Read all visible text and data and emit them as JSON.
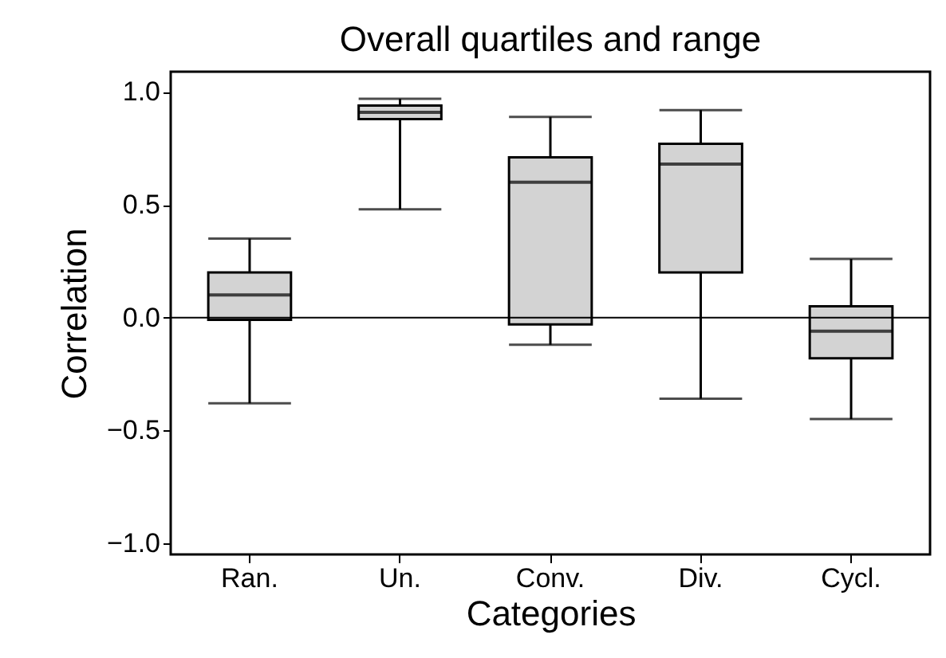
{
  "chart_data": {
    "type": "box",
    "title": "Overall quartiles and range",
    "xlabel": "Categories",
    "ylabel": "Correlation",
    "categories": [
      "Ran.",
      "Un.",
      "Conv.",
      "Div.",
      "Cycl."
    ],
    "series": [
      {
        "color": "#d3d3d3",
        "boxes": [
          {
            "low": -0.38,
            "q1": -0.01,
            "median": 0.1,
            "q3": 0.2,
            "high": 0.35
          },
          {
            "low": 0.48,
            "q1": 0.88,
            "median": 0.91,
            "q3": 0.94,
            "high": 0.97
          },
          {
            "low": -0.12,
            "q1": -0.03,
            "median": 0.6,
            "q3": 0.71,
            "high": 0.89
          },
          {
            "low": -0.36,
            "q1": 0.2,
            "median": 0.68,
            "q3": 0.77,
            "high": 0.92
          },
          {
            "low": -0.45,
            "q1": -0.18,
            "median": -0.06,
            "q3": 0.05,
            "high": 0.26
          }
        ]
      }
    ],
    "ylim": [
      -1.05,
      1.09
    ],
    "yticks": [
      {
        "value": -1,
        "label": "−1.0"
      },
      {
        "value": -0.5,
        "label": "−0.5"
      },
      {
        "value": 0,
        "label": "0.0"
      },
      {
        "value": 0.5,
        "label": "0.5"
      },
      {
        "value": 1,
        "label": "1.0"
      }
    ],
    "ref_lines": [
      {
        "axis": "y",
        "value": 0
      }
    ],
    "grid": false
  }
}
